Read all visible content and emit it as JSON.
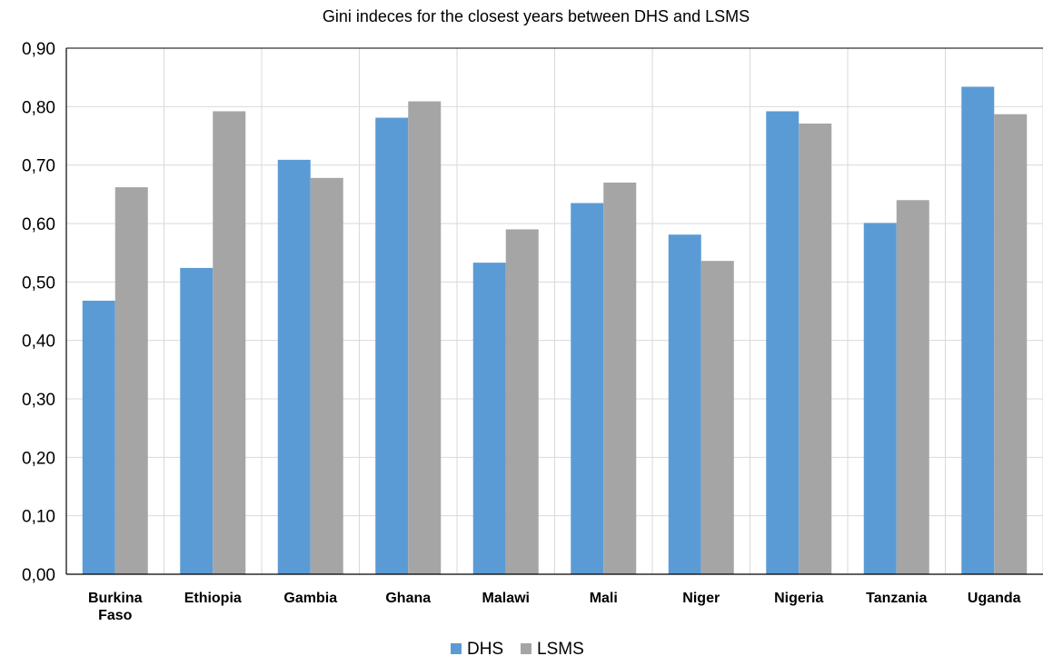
{
  "chart_data": {
    "type": "bar",
    "title": "Gini indeces for the closest years between DHS and LSMS",
    "xlabel": "",
    "ylabel": "",
    "categories": [
      [
        "Burkina",
        "Faso"
      ],
      [
        "Ethiopia"
      ],
      [
        "Gambia"
      ],
      [
        "Ghana"
      ],
      [
        "Malawi"
      ],
      [
        "Mali"
      ],
      [
        "Niger"
      ],
      [
        "Nigeria"
      ],
      [
        "Tanzania"
      ],
      [
        "Uganda"
      ]
    ],
    "series": [
      {
        "name": "DHS",
        "color": "#5b9bd5",
        "values": [
          0.468,
          0.524,
          0.709,
          0.781,
          0.533,
          0.635,
          0.581,
          0.792,
          0.601,
          0.834
        ]
      },
      {
        "name": "LSMS",
        "color": "#a5a5a5",
        "values": [
          0.662,
          0.792,
          0.678,
          0.809,
          0.59,
          0.67,
          0.536,
          0.771,
          0.64,
          0.787
        ]
      }
    ],
    "ylim": [
      0,
      0.9
    ],
    "yticks": [
      "0,00",
      "0,10",
      "0,20",
      "0,30",
      "0,40",
      "0,50",
      "0,60",
      "0,70",
      "0,80",
      "0,90"
    ],
    "grid": true,
    "legend_position": "bottom"
  }
}
